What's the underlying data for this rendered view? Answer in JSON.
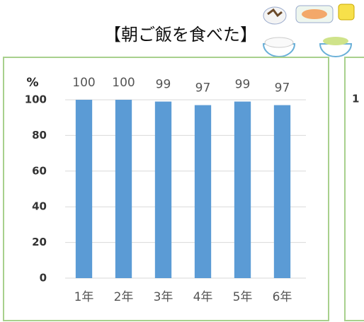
{
  "chart_data": {
    "type": "bar",
    "title": "【朝ご飯を食べた】",
    "y_label": "%",
    "categories": [
      "1年",
      "2年",
      "3年",
      "4年",
      "5年",
      "6年"
    ],
    "values": [
      100,
      100,
      99,
      97,
      99,
      97
    ],
    "color": "#5b9bd5",
    "ylim": [
      0,
      100
    ],
    "yticks": [
      0,
      20,
      40,
      60,
      80,
      100
    ],
    "grid": true
  },
  "next_panel_fragment": "1"
}
